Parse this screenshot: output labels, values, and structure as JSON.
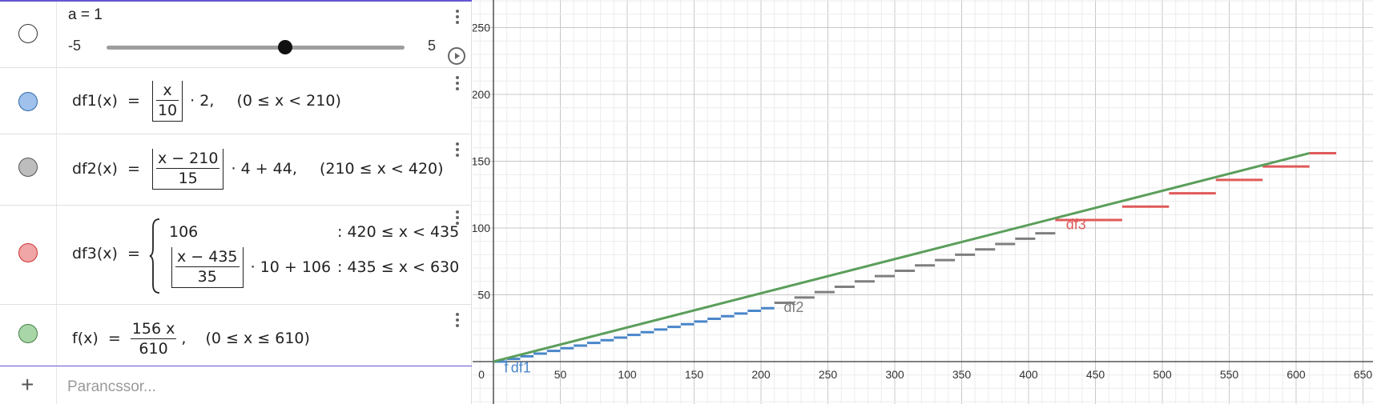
{
  "algebra": {
    "slider": {
      "label": "a = 1",
      "min_label": "-5",
      "max_label": "5",
      "min": -5,
      "max": 5,
      "value": 1
    },
    "df1": {
      "name": "df1(x)",
      "eq": "=",
      "frac_num": "x",
      "frac_den": "10",
      "tail": "· 2,",
      "domain": "(0 ≤ x < 210)",
      "color": "#9fc1ec"
    },
    "df2": {
      "name": "df2(x)",
      "eq": "=",
      "frac_num": "x − 210",
      "frac_den": "15",
      "tail": "· 4 + 44,",
      "domain": "(210 ≤ x < 420)",
      "color": "#bdbdbd"
    },
    "df3": {
      "name": "df3(x)",
      "eq": "=",
      "case1_value": "106",
      "case1_cond": ": 420 ≤ x < 435",
      "case2_frac_num": "x − 435",
      "case2_frac_den": "35",
      "case2_tail": "· 10 + 106",
      "case2_cond": ": 435 ≤ x < 630",
      "color": "#f0a6a6"
    },
    "f": {
      "name": "f(x)",
      "eq": "=",
      "frac_num": "156 x",
      "frac_den": "610",
      "tail": ",",
      "domain": "(0 ≤ x ≤ 610)",
      "color": "#a9d6a9"
    },
    "input": {
      "plus": "+",
      "placeholder": "Parancssor..."
    }
  },
  "chart_data": {
    "type": "line",
    "xlim": [
      -15,
      660
    ],
    "ylim": [
      -32,
      270
    ],
    "x_ticks": [
      0,
      50,
      100,
      150,
      200,
      250,
      300,
      350,
      400,
      450,
      500,
      550,
      600,
      650
    ],
    "y_ticks": [
      50,
      100,
      150,
      200,
      250
    ],
    "grid": true,
    "series": [
      {
        "name": "df1",
        "color": "#4a86c9",
        "kind": "step",
        "x_start": 0,
        "x_end": 210,
        "step": 10,
        "formula": "floor(x/10)*2"
      },
      {
        "name": "df2",
        "color": "#7f7f7f",
        "kind": "step",
        "x_start": 210,
        "x_end": 420,
        "step": 15,
        "formula": "floor((x-210)/15)*4+44"
      },
      {
        "name": "df3",
        "color": "#e05a5a",
        "kind": "step",
        "x_start": 420,
        "x_end": 630,
        "formula": "106 on [420,435); floor((x-435)/35)*10+106 on [435,630)"
      },
      {
        "name": "f",
        "color": "#5b9e5b",
        "kind": "line",
        "x": [
          0,
          610
        ],
        "y": [
          0,
          156
        ]
      }
    ],
    "annotations": [
      {
        "text": "f",
        "x": 8,
        "y": -8,
        "color": "#4a86c9"
      },
      {
        "text": "df1",
        "x": 13,
        "y": -8,
        "color": "#4a86c9"
      },
      {
        "text": "df2",
        "x": 217,
        "y": 37,
        "color": "#7f7f7f"
      },
      {
        "text": "df3",
        "x": 428,
        "y": 99,
        "color": "#e05a5a"
      }
    ]
  }
}
